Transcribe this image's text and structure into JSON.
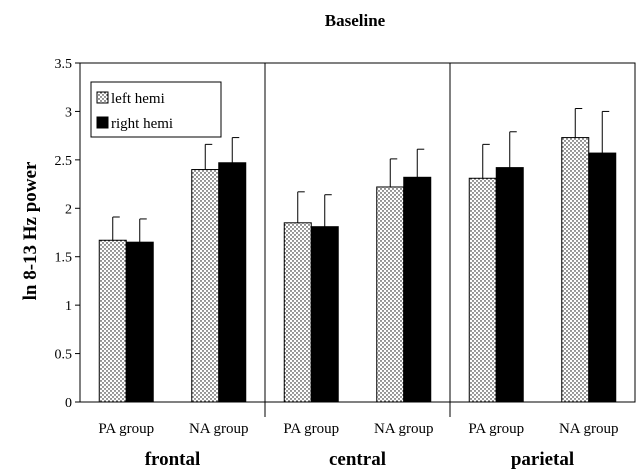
{
  "chart_data": {
    "type": "bar",
    "title": "Baseline",
    "ylabel": "ln 8-13 Hz power",
    "xlabel": "",
    "ylim": [
      0,
      3.5
    ],
    "yticks": [
      "0",
      "0.5",
      "1",
      "1.5",
      "2",
      "2.5",
      "3",
      "3.5"
    ],
    "categories": [
      "PA group",
      "NA group",
      "PA group",
      "NA group",
      "PA group",
      "NA group"
    ],
    "regions": [
      "frontal",
      "central",
      "parietal"
    ],
    "series": [
      {
        "name": "left hemi",
        "pattern": "dotted",
        "color": "#ffffff",
        "values": [
          1.67,
          2.4,
          1.85,
          2.22,
          2.31,
          2.73
        ],
        "errors": [
          0.24,
          0.26,
          0.32,
          0.29,
          0.35,
          0.3
        ]
      },
      {
        "name": "right hemi",
        "pattern": "solid",
        "color": "#000000",
        "values": [
          1.65,
          2.47,
          1.81,
          2.32,
          2.42,
          2.57
        ],
        "errors": [
          0.24,
          0.26,
          0.33,
          0.29,
          0.37,
          0.43
        ]
      }
    ],
    "grid": false,
    "legend": "top-left"
  }
}
